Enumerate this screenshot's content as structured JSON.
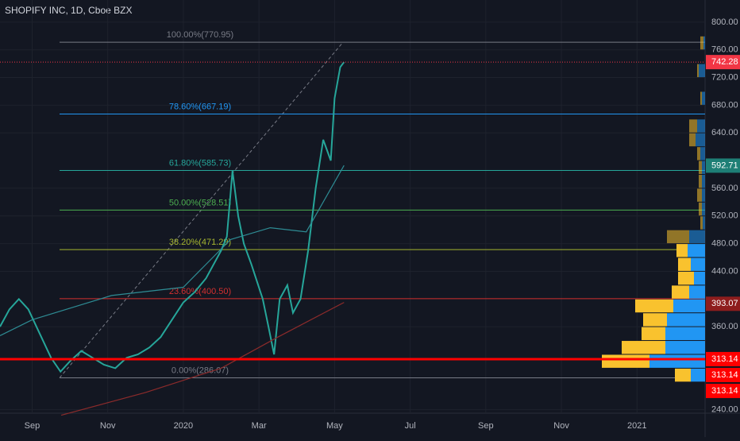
{
  "chart_data": {
    "type": "line",
    "title": "SHOPIFY INC, 1D, Cboe BZX",
    "xlim": [
      -0.85,
      17.8
    ],
    "xticks": [
      {
        "value": 0,
        "label": "Sep"
      },
      {
        "value": 2,
        "label": "Nov"
      },
      {
        "value": 4,
        "label": "2020"
      },
      {
        "value": 6,
        "label": "Mar"
      },
      {
        "value": 8,
        "label": "May"
      },
      {
        "value": 10,
        "label": "Jul"
      },
      {
        "value": 12,
        "label": "Sep"
      },
      {
        "value": 14,
        "label": "Nov"
      },
      {
        "value": 16,
        "label": "2021"
      }
    ],
    "ylim": [
      235,
      832
    ],
    "yticks": [
      {
        "value": 240,
        "label": "240.00"
      },
      {
        "value": 360,
        "label": "360.00"
      },
      {
        "value": 440,
        "label": "440.00"
      },
      {
        "value": 480,
        "label": "480.00"
      },
      {
        "value": 520,
        "label": "520.00"
      },
      {
        "value": 560,
        "label": "560.00"
      },
      {
        "value": 640,
        "label": "640.00"
      },
      {
        "value": 680,
        "label": "680.00"
      },
      {
        "value": 720,
        "label": "720.00"
      },
      {
        "value": 760,
        "label": "760.00"
      },
      {
        "value": 800,
        "label": "800.00"
      }
    ],
    "series": [
      {
        "color": "#26a69a",
        "x": [
          -0.85,
          -0.6,
          -0.35,
          -0.1,
          0.2,
          0.5,
          0.75,
          1.0,
          1.3,
          1.6,
          1.9,
          2.2,
          2.5,
          2.8,
          3.1,
          3.4,
          3.7,
          4.0,
          4.3,
          4.6,
          5.0,
          5.15,
          5.3,
          5.45,
          5.6,
          5.8,
          6.1,
          6.25,
          6.4,
          6.55,
          6.75,
          6.9,
          7.1,
          7.3,
          7.5,
          7.7,
          7.9,
          8.0,
          8.15,
          8.25
        ],
        "values": [
          360,
          385,
          400,
          385,
          350,
          315,
          295,
          310,
          325,
          315,
          305,
          300,
          315,
          320,
          330,
          345,
          370,
          395,
          410,
          430,
          470,
          490,
          585,
          520,
          480,
          450,
          400,
          360,
          320,
          400,
          420,
          380,
          400,
          470,
          560,
          630,
          600,
          690,
          735,
          742.28
        ]
      },
      {
        "color": "#2e8c94",
        "x": [
          -0.85,
          0.0,
          2.1,
          4.0,
          5.25,
          6.3,
          7.25,
          8.25
        ],
        "values": [
          347,
          370,
          405,
          417,
          486,
          503,
          497,
          593
        ]
      },
      {
        "color": "#8c2b2b",
        "x": [
          0.77,
          3.0,
          5.0,
          6.5,
          8.25
        ],
        "values": [
          232,
          265,
          300,
          345,
          395
        ]
      }
    ],
    "fib_levels": [
      {
        "label": "100.00%(770.95)",
        "value": 770.95,
        "color": "#787b86"
      },
      {
        "label": "78.60%(667.19)",
        "value": 667.19,
        "color": "#2196f3"
      },
      {
        "label": "61.80%(585.73)",
        "value": 585.73,
        "color": "#26a69a"
      },
      {
        "label": "50.00%(528.51)",
        "value": 528.51,
        "color": "#4caf50"
      },
      {
        "label": "38.20%(471.29)",
        "value": 471.29,
        "color": "#a5b52f"
      },
      {
        "label": "23.60%(400.50)",
        "value": 400.5,
        "color": "#d32f2f"
      },
      {
        "label": "0.00%(286.07)",
        "value": 286.07,
        "color": "#787b86"
      }
    ],
    "price_tags": [
      {
        "value": 742.28,
        "color": "#f23645"
      },
      {
        "value": 592.71,
        "color": "#1e7f76"
      },
      {
        "value": 393.07,
        "color": "#8e1d1d"
      },
      {
        "value": 313.14,
        "color": "#ff0000"
      },
      {
        "value": 313.14,
        "color": "#ff0000"
      },
      {
        "value": 313.14,
        "color": "#ff0000"
      }
    ],
    "volume_profile": {
      "colors": [
        "#2196f3",
        "#f9c22e"
      ],
      "price": [
        770,
        730,
        690,
        650,
        630,
        610,
        590,
        570,
        550,
        530,
        510,
        490,
        470,
        450,
        430,
        410,
        390,
        370,
        350,
        330,
        310,
        290
      ],
      "up": [
        2,
        8,
        4,
        10,
        12,
        6,
        4,
        4,
        4,
        4,
        3,
        20,
        22,
        18,
        14,
        20,
        40,
        48,
        50,
        50,
        70,
        18
      ],
      "down": [
        4,
        2,
        2,
        10,
        8,
        4,
        4,
        4,
        6,
        4,
        3,
        28,
        14,
        16,
        20,
        22,
        48,
        30,
        30,
        55,
        60,
        20
      ]
    }
  }
}
